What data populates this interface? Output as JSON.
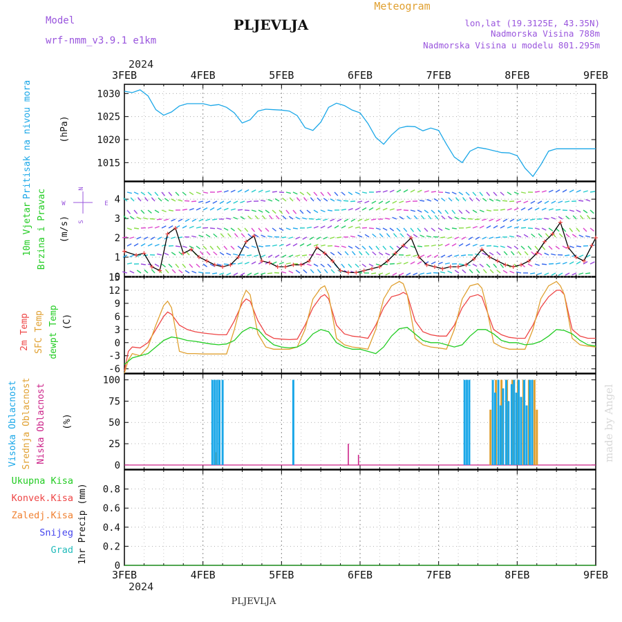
{
  "header": {
    "model_label": "Model",
    "model_name": "wrf-nmm_v3.9.1 e1km",
    "city": "PLJEVLJA",
    "meteogram": "Meteogram",
    "lonlat": "lon,lat (19.3125E, 43.35N)",
    "elevation": "Nadmorska Visina 788m",
    "elevation_model": "Nadmorska Visina u modelu 801.295m",
    "footer_city": "PLJEVLJA",
    "watermark": "made by Angel"
  },
  "colors": {
    "pressure": "#1aa7e8",
    "temp2m": "#ee4444",
    "sfc": "#e0a030",
    "dewpt": "#22cc22",
    "high_cloud": "#1aa7e8",
    "mid_cloud": "#e0a030",
    "low_cloud": "#cc2288",
    "purple": "#9955dd"
  },
  "chart_data": {
    "type": "meteogram",
    "year": "2024",
    "days": [
      "3FEB",
      "4FEB",
      "5FEB",
      "6FEB",
      "7FEB",
      "8FEB",
      "9FEB"
    ],
    "panels": [
      {
        "id": "pressure",
        "title": "Pritisak na nivou mora",
        "unit": "(hPa)",
        "ylim": [
          1011,
          1032
        ],
        "yticks": [
          1015,
          1020,
          1025,
          1030
        ],
        "series": [
          {
            "x": [
              0,
              0.1,
              0.2,
              0.3,
              0.4,
              0.5,
              0.6,
              0.7,
              0.8,
              0.9,
              1.0,
              1.1,
              1.2,
              1.3,
              1.4,
              1.5,
              1.6,
              1.7,
              1.8,
              1.9,
              2.0,
              2.1,
              2.2,
              2.3,
              2.4,
              2.5,
              2.6,
              2.7,
              2.8,
              2.9,
              3.0,
              3.1,
              3.2,
              3.3,
              3.4,
              3.5,
              3.6,
              3.7,
              3.8,
              3.9,
              4.0,
              4.1,
              4.2,
              4.3,
              4.4,
              4.5,
              4.6,
              4.7,
              4.8,
              4.9,
              5.0,
              5.1,
              5.2,
              5.3,
              5.4,
              5.5,
              5.6,
              5.7,
              5.8,
              5.9,
              6.0
            ],
            "y": [
              1030.5,
              1030.2,
              1030.8,
              1029.5,
              1026.5,
              1025.3,
              1026.0,
              1027.3,
              1027.8,
              1027.8,
              1027.8,
              1027.4,
              1027.6,
              1027.0,
              1025.8,
              1023.6,
              1024.3,
              1026.2,
              1026.6,
              1026.5,
              1026.4,
              1026.2,
              1025.2,
              1022.6,
              1022.0,
              1023.8,
              1027.0,
              1027.9,
              1027.4,
              1026.4,
              1025.8,
              1023.5,
              1020.5,
              1019.0,
              1021.0,
              1022.5,
              1022.9,
              1022.8,
              1021.9,
              1022.5,
              1022.0,
              1019.0,
              1016.2,
              1015.0,
              1017.5,
              1018.3,
              1018.0,
              1017.6,
              1017.2,
              1017.1,
              1016.5,
              1013.8,
              1012.0,
              1014.5,
              1017.5,
              1018.0,
              1018.0,
              1018.0,
              1018.0,
              1018.0,
              1018.0
            ]
          }
        ]
      },
      {
        "id": "wind",
        "title_lines": [
          "10m Vjetar",
          "Brzina i Pravac"
        ],
        "unit": "(m/s)",
        "compass": [
          "N",
          "W",
          "E",
          "S"
        ],
        "ylim": [
          0,
          4.9
        ],
        "yticks": [
          0,
          1,
          2,
          3,
          4
        ],
        "series": [
          {
            "x": [
              0,
              0.15,
              0.25,
              0.35,
              0.45,
              0.55,
              0.65,
              0.75,
              0.85,
              0.95,
              1.05,
              1.15,
              1.25,
              1.35,
              1.45,
              1.55,
              1.65,
              1.75,
              1.85,
              1.95,
              2.05,
              2.15,
              2.25,
              2.35,
              2.45,
              2.55,
              2.65,
              2.75,
              2.85,
              2.95,
              3.05,
              3.15,
              3.25,
              3.35,
              3.45,
              3.55,
              3.65,
              3.75,
              3.85,
              3.95,
              4.05,
              4.15,
              4.25,
              4.35,
              4.45,
              4.55,
              4.65,
              4.75,
              4.85,
              4.95,
              5.05,
              5.15,
              5.25,
              5.35,
              5.45,
              5.55,
              5.65,
              5.75,
              5.85,
              5.95,
              6.0
            ],
            "y": [
              1.3,
              1.1,
              1.2,
              0.5,
              0.3,
              2.2,
              2.5,
              1.2,
              1.4,
              1.0,
              0.8,
              0.6,
              0.5,
              0.6,
              1.0,
              1.8,
              2.1,
              0.8,
              0.7,
              0.5,
              0.5,
              0.6,
              0.6,
              0.8,
              1.5,
              1.2,
              0.8,
              0.3,
              0.2,
              0.2,
              0.3,
              0.4,
              0.5,
              0.8,
              1.2,
              1.6,
              2.0,
              1.0,
              0.6,
              0.5,
              0.4,
              0.5,
              0.5,
              0.6,
              0.9,
              1.4,
              1.0,
              0.8,
              0.6,
              0.5,
              0.6,
              0.8,
              1.2,
              1.8,
              2.2,
              2.8,
              1.5,
              1.0,
              0.8,
              1.6,
              2.0
            ]
          }
        ]
      },
      {
        "id": "temperature",
        "title_lines": [
          "2m Temp",
          "SFC Temp",
          "dewpt Temp"
        ],
        "unit": "(C)",
        "ylim": [
          -7,
          15
        ],
        "yticks": [
          -6,
          -3,
          0,
          3,
          6,
          9,
          12,
          15
        ],
        "series": [
          {
            "name": "2m Temp",
            "x": [
              0,
              0.05,
              0.1,
              0.2,
              0.3,
              0.4,
              0.5,
              0.55,
              0.6,
              0.7,
              0.8,
              0.9,
              1.0,
              1.1,
              1.2,
              1.3,
              1.4,
              1.5,
              1.55,
              1.6,
              1.7,
              1.8,
              1.9,
              2.0,
              2.1,
              2.2,
              2.3,
              2.4,
              2.5,
              2.55,
              2.6,
              2.7,
              2.8,
              2.9,
              3.0,
              3.1,
              3.2,
              3.3,
              3.4,
              3.5,
              3.55,
              3.6,
              3.7,
              3.8,
              3.9,
              4.0,
              4.1,
              4.2,
              4.3,
              4.4,
              4.5,
              4.55,
              4.6,
              4.7,
              4.8,
              4.9,
              5.0,
              5.1,
              5.2,
              5.3,
              5.4,
              5.5,
              5.55,
              5.6,
              5.7,
              5.8,
              5.9,
              6.0
            ],
            "y": [
              -6.5,
              -2,
              -1,
              -1.2,
              0,
              3,
              6,
              7,
              6.5,
              4,
              3,
              2.5,
              2.2,
              2,
              1.8,
              1.8,
              5,
              9,
              10,
              9.5,
              5,
              2,
              1,
              0.8,
              0.7,
              0.8,
              4,
              8,
              10.5,
              11,
              10,
              4,
              2,
              1.5,
              1.3,
              1,
              4,
              8,
              10.5,
              11,
              11.5,
              11,
              5,
              2.5,
              1.8,
              1.5,
              1.5,
              4,
              8,
              10.5,
              11,
              10.5,
              8,
              3,
              1.8,
              1.2,
              1,
              1,
              4,
              8,
              10.5,
              12,
              12,
              11,
              3,
              1.5,
              1,
              1
            ]
          },
          {
            "name": "SFC Temp",
            "x": [
              0,
              0.05,
              0.1,
              0.2,
              0.3,
              0.4,
              0.5,
              0.55,
              0.6,
              0.7,
              0.8,
              0.9,
              1.0,
              1.1,
              1.2,
              1.3,
              1.4,
              1.5,
              1.55,
              1.6,
              1.7,
              1.8,
              1.9,
              2.0,
              2.1,
              2.2,
              2.3,
              2.4,
              2.5,
              2.55,
              2.6,
              2.7,
              2.8,
              2.9,
              3.0,
              3.1,
              3.2,
              3.3,
              3.4,
              3.5,
              3.55,
              3.6,
              3.7,
              3.8,
              3.9,
              4.0,
              4.1,
              4.2,
              4.3,
              4.4,
              4.5,
              4.55,
              4.6,
              4.7,
              4.8,
              4.9,
              5.0,
              5.1,
              5.2,
              5.3,
              5.4,
              5.5,
              5.55,
              5.6,
              5.7,
              5.8,
              5.9,
              6.0
            ],
            "y": [
              -7,
              -4,
              -2.5,
              -3,
              -1,
              4,
              8.5,
              9.5,
              8,
              -2,
              -2.5,
              -2.5,
              -2.6,
              -2.6,
              -2.6,
              -2.6,
              3,
              10,
              12,
              11,
              2,
              -1,
              -1.5,
              -1.5,
              -1.5,
              -1,
              3,
              10,
              12.5,
              13,
              11,
              1,
              -0.5,
              -1,
              -1.2,
              -1.5,
              3,
              10,
              13,
              14,
              13.5,
              11,
              1,
              -0.5,
              -1,
              -1.2,
              -1.5,
              3,
              10,
              13,
              13.5,
              12.5,
              9,
              0,
              -1,
              -1.5,
              -1.5,
              -1.5,
              3,
              10,
              13,
              14,
              13,
              11,
              1,
              -0.5,
              -0.8,
              -1
            ]
          },
          {
            "name": "dewpt Temp",
            "x": [
              0,
              0.1,
              0.2,
              0.3,
              0.4,
              0.5,
              0.6,
              0.7,
              0.8,
              0.9,
              1.0,
              1.1,
              1.2,
              1.3,
              1.4,
              1.5,
              1.6,
              1.7,
              1.8,
              1.9,
              2.0,
              2.1,
              2.2,
              2.3,
              2.4,
              2.5,
              2.6,
              2.7,
              2.8,
              2.9,
              3.0,
              3.1,
              3.2,
              3.3,
              3.4,
              3.5,
              3.6,
              3.7,
              3.8,
              3.9,
              4.0,
              4.1,
              4.2,
              4.3,
              4.4,
              4.5,
              4.6,
              4.7,
              4.8,
              4.9,
              5.0,
              5.1,
              5.2,
              5.3,
              5.4,
              5.5,
              5.6,
              5.7,
              5.8,
              5.9,
              6.0
            ],
            "y": [
              -5,
              -3.5,
              -3,
              -2.5,
              -1,
              0.5,
              1.3,
              1,
              0.5,
              0.3,
              0,
              -0.3,
              -0.5,
              -0.3,
              0.5,
              2.5,
              3.5,
              3,
              1,
              -0.5,
              -1,
              -1.2,
              -1,
              0,
              2,
              3,
              2.5,
              0,
              -1,
              -1.5,
              -1.5,
              -2,
              -2.5,
              -1,
              1.5,
              3.2,
              3.5,
              2,
              0.5,
              0,
              0,
              -0.5,
              -1,
              -0.5,
              1.5,
              3,
              3,
              2,
              0.5,
              0,
              0,
              -0.5,
              -0.3,
              0.3,
              1.5,
              3,
              2.8,
              2,
              0.5,
              -0.5,
              -0.8
            ]
          }
        ]
      },
      {
        "id": "cloud",
        "title_lines": [
          "Visoka Oblacnost",
          "Srednja Oblacnost",
          "Niska Oblacnost"
        ],
        "unit": "(%)",
        "ylim": [
          -5,
          107
        ],
        "yticks": [
          0,
          25,
          50,
          75,
          100
        ],
        "high": [
          [
            1.12,
            100
          ],
          [
            1.15,
            100
          ],
          [
            1.18,
            100
          ],
          [
            1.21,
            100
          ],
          [
            1.25,
            100
          ],
          [
            2.15,
            100
          ],
          [
            4.33,
            100
          ],
          [
            4.36,
            100
          ],
          [
            4.39,
            100
          ],
          [
            4.69,
            100
          ],
          [
            4.72,
            85
          ],
          [
            4.76,
            100
          ],
          [
            4.79,
            70
          ],
          [
            4.82,
            90
          ],
          [
            4.86,
            100
          ],
          [
            4.89,
            75
          ],
          [
            4.93,
            95
          ],
          [
            4.96,
            100
          ],
          [
            4.99,
            85
          ],
          [
            5.02,
            100
          ],
          [
            5.05,
            80
          ],
          [
            5.09,
            100
          ],
          [
            5.12,
            70
          ],
          [
            5.16,
            100
          ],
          [
            5.19,
            100
          ]
        ],
        "mid": [
          [
            1.17,
            15
          ],
          [
            1.21,
            30
          ],
          [
            4.66,
            65
          ],
          [
            4.73,
            100
          ],
          [
            4.8,
            100
          ],
          [
            4.87,
            100
          ],
          [
            4.94,
            100
          ],
          [
            5.01,
            100
          ],
          [
            5.08,
            100
          ],
          [
            5.15,
            100
          ],
          [
            5.22,
            100
          ],
          [
            5.25,
            65
          ]
        ],
        "low": [
          [
            2.85,
            25
          ],
          [
            2.98,
            12
          ]
        ]
      },
      {
        "id": "precip",
        "title_lines": [
          "Ukupna Kisa",
          "Konvek.Kisa",
          "Zaledj.Kisa",
          "Snijeg",
          "Grad"
        ],
        "unit": "1hr Precip (mm)",
        "ylim": [
          0,
          1.0
        ],
        "yticks": [
          0,
          0.2,
          0.4,
          0.6,
          0.8
        ],
        "series_colors": [
          "#22cc22",
          "#ee4444",
          "#f08030",
          "#4444ee",
          "#22bbbb"
        ]
      }
    ]
  }
}
